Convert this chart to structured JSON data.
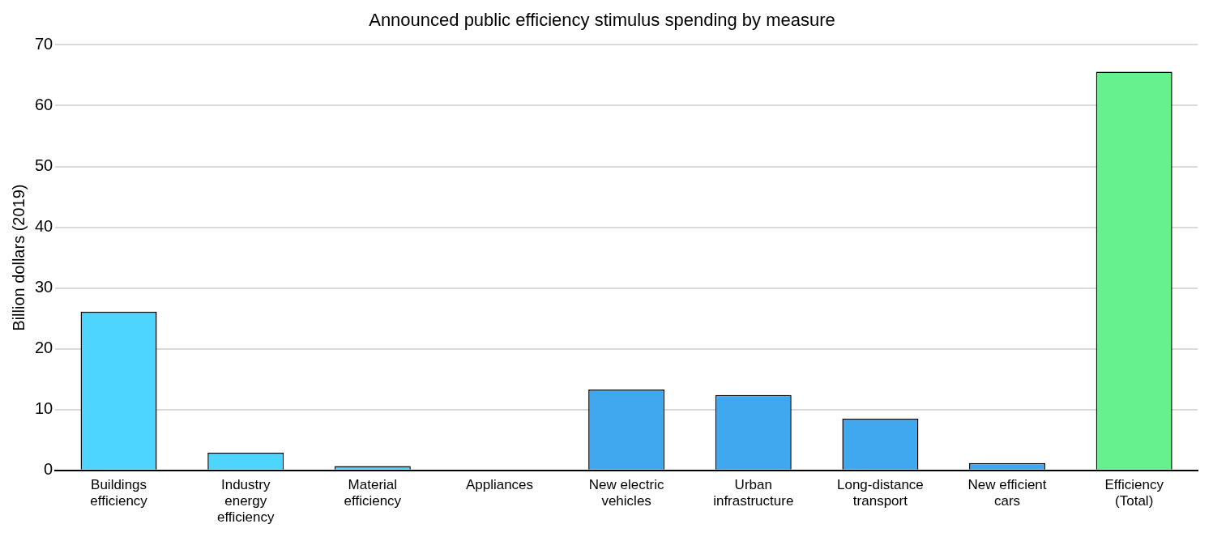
{
  "chart_data": {
    "type": "bar",
    "title": "Announced public efficiency stimulus spending by measure",
    "ylabel": "Billion dollars (2019)",
    "categories": [
      "Buildings efficiency",
      "Industry energy efficiency",
      "Material efficiency",
      "Appliances",
      "New electric vehicles",
      "Urban infrastructure",
      "Long-distance transport",
      "New efficient cars",
      "Efficiency (Total)"
    ],
    "values": [
      26.1,
      2.9,
      0.7,
      0,
      13.3,
      12.4,
      8.5,
      1.2,
      65.6
    ],
    "colors": [
      "#4dd5ff",
      "#4dd5ff",
      "#4dd5ff",
      "#4dd5ff",
      "#3fa8ee",
      "#3fa8ee",
      "#3fa8ee",
      "#3fa8ee",
      "#66f08e"
    ],
    "ylim": [
      0,
      70
    ],
    "yticks": [
      0,
      10,
      20,
      30,
      40,
      50,
      60,
      70
    ],
    "grid": "y",
    "legend": false
  }
}
